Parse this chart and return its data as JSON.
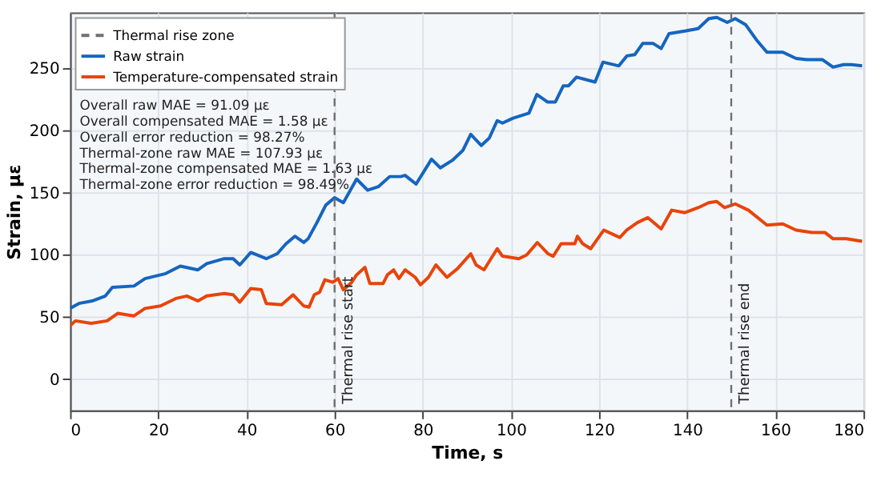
{
  "chart_data": {
    "type": "line",
    "xlabel": "Time, s",
    "ylabel": "Strain, με",
    "xlim": [
      0,
      180
    ],
    "xticks": [
      0,
      20,
      40,
      60,
      80,
      100,
      120,
      140,
      160,
      180
    ],
    "ylim": [
      -25,
      295
    ],
    "yticks": [
      0,
      50,
      100,
      150,
      200,
      250
    ],
    "grid": true,
    "legend": "top left",
    "line_style": "solid",
    "marker": "none",
    "series": [
      {
        "name": "Raw strain",
        "color": "#1565c0",
        "x": [
          0,
          2,
          5,
          8,
          9.6,
          14.5,
          17,
          21.7,
          25,
          29,
          31,
          35,
          37,
          38.5,
          41,
          44.5,
          47,
          49,
          51,
          53,
          54,
          56,
          58,
          60,
          62,
          65,
          67.5,
          70,
          72.5,
          75,
          76,
          78.5,
          82,
          84,
          86.7,
          89.1,
          90.9,
          93.3,
          95.1,
          96.9,
          98.1,
          100.5,
          104.1,
          105.9,
          108.3,
          110.1,
          111.9,
          113.1,
          114.9,
          119.1,
          120.9,
          124.5,
          126.3,
          128.1,
          129.9,
          132.3,
          134.1,
          135.9,
          139.5,
          142.5,
          144.9,
          146.7,
          149.1,
          150.9,
          153.3,
          155.7,
          158.1,
          161.7,
          164.7,
          167.1,
          170.7,
          173.1,
          175.5,
          177.3,
          179.7
        ],
        "values": [
          57,
          61,
          63,
          67,
          74,
          75,
          81,
          85,
          91,
          88,
          93,
          97,
          97,
          92,
          102,
          97,
          101,
          109,
          115,
          110,
          113,
          126,
          140,
          146,
          142,
          161,
          152,
          155,
          163,
          163,
          164,
          157,
          177,
          170,
          176,
          184,
          197,
          188,
          194,
          208,
          206,
          210,
          214,
          229,
          223,
          223,
          236,
          236,
          243,
          239,
          255,
          252,
          260,
          261,
          270,
          270,
          266,
          278,
          280,
          282,
          290,
          291,
          287,
          290,
          285,
          273,
          263,
          263,
          258,
          257,
          257,
          251,
          253,
          253,
          252
        ]
      },
      {
        "name": "Temperature-compensated strain",
        "color": "#e8440a",
        "x": [
          0,
          1.2,
          4.8,
          8.4,
          10.8,
          14.5,
          17,
          20.5,
          24,
          26.5,
          29,
          31,
          35,
          37,
          38.5,
          41,
          43.4,
          44.5,
          48,
          50.6,
          53,
          54.2,
          55.4,
          56.6,
          57.8,
          59.6,
          60.8,
          62,
          63.9,
          65,
          66.9,
          68,
          71,
          72,
          73.4,
          74.6,
          76,
          78.3,
          79.5,
          81.3,
          83,
          85.5,
          87.9,
          90.9,
          92.1,
          93.9,
          96.9,
          98.1,
          101.8,
          103.6,
          106,
          108.4,
          109.6,
          111.4,
          114.5,
          115.1,
          116.3,
          118.1,
          121.1,
          122.9,
          124.7,
          126.3,
          128.7,
          131.1,
          134.1,
          136.5,
          139.5,
          142.5,
          144.9,
          146.7,
          148.5,
          150.9,
          153.9,
          158.1,
          161.7,
          164.7,
          168.3,
          171.3,
          173.1,
          176.1,
          179.7
        ],
        "values": [
          43,
          47,
          45,
          47,
          53,
          51,
          57,
          59,
          65,
          67,
          63,
          67,
          69,
          68,
          62,
          73,
          72,
          61,
          60,
          68,
          59,
          58,
          68,
          70,
          80,
          78,
          81,
          72,
          78,
          84,
          90,
          77,
          77,
          84,
          88,
          81,
          88,
          82,
          76,
          82,
          92,
          82,
          89,
          101,
          92,
          88,
          105,
          99,
          97,
          100,
          110,
          101,
          99,
          109,
          109,
          115,
          109,
          105,
          120,
          117,
          114,
          120,
          126,
          130,
          121,
          136,
          134,
          138,
          142,
          143,
          138,
          141,
          136,
          124,
          125,
          120,
          118,
          118,
          113,
          113,
          111
        ]
      }
    ],
    "ref_lines": [
      {
        "axis": "x",
        "value": 60,
        "label": "Thermal rise start",
        "color": "#707070",
        "line_style": "dashed"
      },
      {
        "axis": "x",
        "value": 150,
        "label": "Thermal rise end",
        "color": "#707070",
        "line_style": "dashed"
      }
    ],
    "annotations": [
      "Thermal rise zone",
      "Overall raw MAE = 91.09 με",
      "Overall compensated MAE = 1.58 με",
      "Overall error reduction = 98.27%",
      "Thermal-zone raw MAE = 107.93 με",
      "Thermal-zone compensated MAE = 1.63 με",
      "Thermal-zone error reduction = 98.49%"
    ]
  }
}
